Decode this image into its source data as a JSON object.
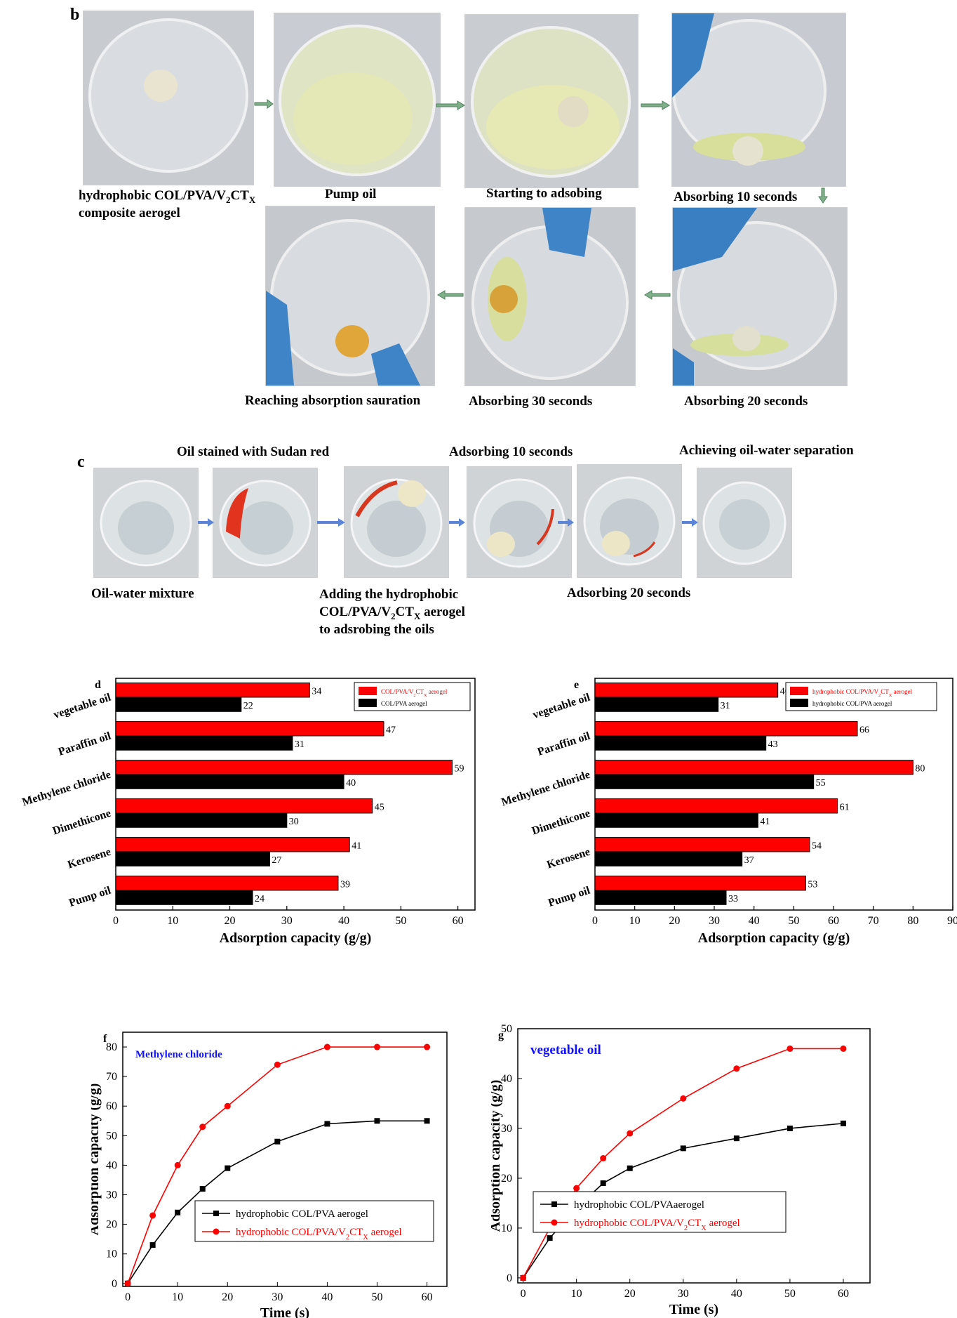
{
  "panel_b": {
    "letter": "b",
    "captions": {
      "p1_line1": "hydrophobic COL/PVA/V",
      "p1_sub1": "2",
      "p1_mid": "CT",
      "p1_sub2": "X",
      "p1_line2": "composite aerogel",
      "p2": "Pump oil",
      "p3": "Starting to adsobing",
      "p4": "Absorbing 10 seconds",
      "p5": "Absorbing 20 seconds",
      "p6": "Absorbing 30 seconds",
      "p7": "Reaching absorption sauration"
    }
  },
  "panel_c": {
    "letter": "c",
    "captions": {
      "c1": "Oil-water mixture",
      "c2": "Oil stained with Sudan red",
      "c3_line1": "Adding the hydrophobic",
      "c3_pre": "COL/PVA/V",
      "c3_sub1": "2",
      "c3_mid": "CT",
      "c3_sub2": "X",
      "c3_post": " aerogel",
      "c3_line3": "to adsrobing the oils",
      "c4": "Adsorbing 10 seconds",
      "c5": "Adsorbing 20 seconds",
      "c6": "Achieving oil-water separation"
    }
  },
  "colors": {
    "red": "#ff0000",
    "black": "#000000",
    "arrow_green": "#7fb08a",
    "arrow_blue": "#5b85d6"
  },
  "chart_data": [
    {
      "id": "d",
      "type": "bar",
      "orientation": "horizontal",
      "panel_letter": "d",
      "categories": [
        "vegetable oil",
        "Paraffin oil",
        "Methylene chloride",
        "Dimethicone",
        "Kerosene",
        "Pump oil"
      ],
      "series": [
        {
          "name": "COL/PVA/V2CTX aerogel",
          "color": "#ff0000",
          "values": [
            34,
            47,
            59,
            45,
            41,
            39
          ]
        },
        {
          "name": "COL/PVA aerogel",
          "color": "#000000",
          "values": [
            22,
            31,
            40,
            30,
            27,
            24
          ]
        }
      ],
      "xlabel": "Adsorption capacity (g/g)",
      "xlim": [
        0,
        63
      ],
      "xticks": [
        0,
        10,
        20,
        30,
        40,
        50,
        60
      ],
      "legend": "top-right"
    },
    {
      "id": "e",
      "type": "bar",
      "orientation": "horizontal",
      "panel_letter": "e",
      "categories": [
        "vegetable oil",
        "Paraffin oil",
        "Methylene chloride",
        "Dimethicone",
        "Kerosene",
        "Pump oil"
      ],
      "series": [
        {
          "name": "hydrophobic COL/PVA/V2CTX aerogel",
          "color": "#ff0000",
          "values": [
            46,
            66,
            80,
            61,
            54,
            53
          ]
        },
        {
          "name": "hydrophobic COL/PVA aerogel",
          "color": "#000000",
          "values": [
            31,
            43,
            55,
            41,
            37,
            33
          ]
        }
      ],
      "xlabel": "Adsorption capacity (g/g)",
      "xlim": [
        0,
        90
      ],
      "xticks": [
        0,
        10,
        20,
        30,
        40,
        50,
        60,
        70,
        80,
        90
      ],
      "legend": "top-right"
    },
    {
      "id": "f",
      "type": "line",
      "panel_letter": "f",
      "annotation": "Methylene chloride",
      "x": [
        0,
        5,
        10,
        15,
        20,
        30,
        40,
        50,
        60
      ],
      "series": [
        {
          "name": "hydrophobic COL/PVA aerogel",
          "color": "#000000",
          "marker": "square",
          "values": [
            0,
            13,
            24,
            32,
            39,
            48,
            54,
            55,
            55
          ]
        },
        {
          "name": "hydrophobic COL/PVA/V2CTX aerogel",
          "color": "#ff0000",
          "marker": "circle",
          "values": [
            0,
            23,
            40,
            53,
            60,
            74,
            80,
            80,
            80
          ]
        }
      ],
      "xlabel": "Time (s)",
      "ylabel": "Adsorption capacity (g/g)",
      "xlim": [
        -1,
        64
      ],
      "ylim": [
        -1,
        85
      ],
      "xticks": [
        0,
        10,
        20,
        30,
        40,
        50,
        60
      ],
      "yticks": [
        0,
        10,
        20,
        30,
        40,
        50,
        60,
        70,
        80
      ],
      "legend": "bottom-right"
    },
    {
      "id": "g",
      "type": "line",
      "panel_letter": "g",
      "annotation": "vegetable oil",
      "x": [
        0,
        5,
        10,
        15,
        20,
        30,
        40,
        50,
        60
      ],
      "series": [
        {
          "name": "hydrophobic COL/PVAaerogel",
          "color": "#000000",
          "marker": "square",
          "values": [
            0,
            8,
            14,
            19,
            22,
            26,
            28,
            30,
            31
          ]
        },
        {
          "name": "hydrophobic COL/PVA/V2CTX aerogel",
          "color": "#ff0000",
          "marker": "circle",
          "values": [
            0,
            10,
            18,
            24,
            29,
            36,
            42,
            46,
            46
          ]
        }
      ],
      "xlabel": "Time (s)",
      "ylabel": "Adsorption capacity (g/g)",
      "xlim": [
        -1,
        65
      ],
      "ylim": [
        -1,
        50
      ],
      "xticks": [
        0,
        10,
        20,
        30,
        40,
        50,
        60
      ],
      "yticks": [
        0,
        10,
        20,
        30,
        40,
        50
      ],
      "legend": "bottom-right"
    }
  ]
}
